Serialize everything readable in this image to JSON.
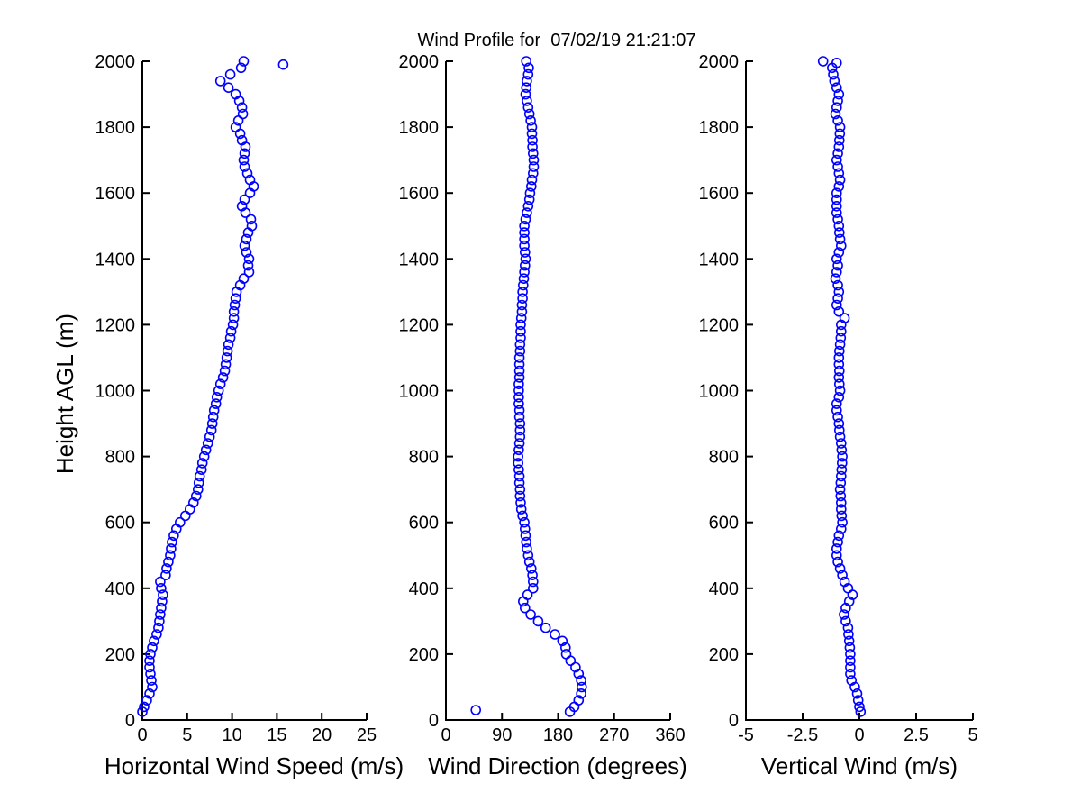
{
  "figure": {
    "title": "Wind Profile for  07/02/19 21:21:07",
    "ylabel": "Height AGL (m)",
    "marker_color": "#0000FF",
    "axis_color": "#000000",
    "background": "#FFFFFF"
  },
  "profile_heights_m": [
    25,
    40,
    60,
    80,
    100,
    120,
    140,
    160,
    180,
    200,
    220,
    240,
    260,
    280,
    300,
    320,
    340,
    360,
    380,
    400,
    420,
    440,
    460,
    480,
    500,
    520,
    540,
    560,
    580,
    600,
    620,
    640,
    660,
    680,
    700,
    720,
    740,
    760,
    780,
    800,
    820,
    840,
    860,
    880,
    900,
    920,
    940,
    960,
    980,
    1000,
    1020,
    1040,
    1060,
    1080,
    1100,
    1120,
    1140,
    1160,
    1180,
    1200,
    1220,
    1240,
    1260,
    1280,
    1300,
    1320,
    1340,
    1360,
    1380,
    1400,
    1420,
    1440,
    1460,
    1480,
    1500,
    1520,
    1540,
    1560,
    1580,
    1600,
    1620,
    1640,
    1660,
    1680,
    1700,
    1720,
    1740,
    1760,
    1780,
    1800,
    1820,
    1840,
    1860,
    1880,
    1900,
    1920,
    1940,
    1960,
    1980,
    2000
  ],
  "chart_data": [
    {
      "type": "scatter",
      "xlabel": "Horizontal Wind Speed (m/s)",
      "ylabel": "Height AGL (m)",
      "marker": "open-circle",
      "xlim": [
        0,
        25
      ],
      "ylim": [
        0,
        2000
      ],
      "xticks": [
        0,
        5,
        10,
        15,
        20,
        25
      ],
      "xtick_labels": [
        "0",
        "5",
        "10",
        "15",
        "20",
        "25"
      ],
      "yticks": [
        0,
        200,
        400,
        600,
        800,
        1000,
        1200,
        1400,
        1600,
        1800,
        2000
      ],
      "grid": false,
      "legend": false,
      "values": [
        0.0,
        0.2,
        0.5,
        0.8,
        1.1,
        1.0,
        0.9,
        0.8,
        0.8,
        0.9,
        1.1,
        1.3,
        1.6,
        1.8,
        1.9,
        2.0,
        2.1,
        2.2,
        2.3,
        2.1,
        2.0,
        2.6,
        2.7,
        2.9,
        3.1,
        3.2,
        3.3,
        3.5,
        3.8,
        4.2,
        4.8,
        5.3,
        5.7,
        6.0,
        6.2,
        6.3,
        6.4,
        6.6,
        6.7,
        6.9,
        7.1,
        7.3,
        7.5,
        7.7,
        7.8,
        7.9,
        8.0,
        8.2,
        8.3,
        8.5,
        8.7,
        9.0,
        9.2,
        9.3,
        9.4,
        9.5,
        9.6,
        9.8,
        9.9,
        10.1,
        10.2,
        10.2,
        10.3,
        10.4,
        10.5,
        10.9,
        11.3,
        11.9,
        11.8,
        11.9,
        11.6,
        11.4,
        11.6,
        11.8,
        12.2,
        12.1,
        11.5,
        11.1,
        11.4,
        12.0,
        12.4,
        12.0,
        11.7,
        11.4,
        11.3,
        11.4,
        11.5,
        11.1,
        10.9,
        10.4,
        10.7,
        11.2,
        11.1,
        10.8,
        10.4,
        9.6,
        8.7,
        9.8,
        11.0,
        11.3
      ],
      "outliers": [
        [
          15.7,
          1990
        ]
      ]
    },
    {
      "type": "scatter",
      "xlabel": "Wind Direction (degrees)",
      "ylabel": "Height AGL (m)",
      "marker": "open-circle",
      "xlim": [
        0,
        360
      ],
      "ylim": [
        0,
        2000
      ],
      "xticks": [
        0,
        90,
        180,
        270,
        360
      ],
      "xtick_labels": [
        "0",
        "90",
        "180",
        "270",
        "360"
      ],
      "yticks": [
        0,
        200,
        400,
        600,
        800,
        1000,
        1200,
        1400,
        1600,
        1800,
        2000
      ],
      "grid": false,
      "legend": false,
      "values": [
        199,
        206,
        213,
        217,
        218,
        217,
        213,
        208,
        200,
        193,
        192,
        187,
        175,
        160,
        148,
        136,
        127,
        124,
        131,
        140,
        140,
        139,
        137,
        134,
        132,
        130,
        129,
        128,
        127,
        126,
        123,
        121,
        120,
        119,
        119,
        118,
        118,
        117,
        116,
        116,
        117,
        118,
        119,
        119,
        119,
        118,
        118,
        117,
        117,
        117,
        117,
        118,
        118,
        118,
        118,
        119,
        119,
        120,
        120,
        120,
        121,
        122,
        122,
        123,
        123,
        124,
        125,
        126,
        127,
        128,
        127,
        126,
        126,
        126,
        126,
        128,
        130,
        132,
        134,
        135,
        137,
        138,
        140,
        141,
        141,
        140,
        139,
        139,
        138,
        138,
        136,
        134,
        132,
        130,
        128,
        129,
        130,
        132,
        133,
        129
      ],
      "outliers": [
        [
          48,
          30
        ]
      ]
    },
    {
      "type": "scatter",
      "xlabel": "Vertical Wind (m/s)",
      "ylabel": "Height AGL (m)",
      "marker": "open-circle",
      "xlim": [
        -5,
        5
      ],
      "ylim": [
        0,
        2000
      ],
      "xticks": [
        -5,
        -2.5,
        0,
        2.5,
        5
      ],
      "xtick_labels": [
        "-5",
        "-2.5",
        "0",
        "2.5",
        "5"
      ],
      "yticks": [
        0,
        200,
        400,
        600,
        800,
        1000,
        1200,
        1400,
        1600,
        1800,
        2000
      ],
      "grid": false,
      "legend": false,
      "values": [
        0.05,
        0.0,
        -0.05,
        -0.1,
        -0.2,
        -0.35,
        -0.4,
        -0.4,
        -0.4,
        -0.4,
        -0.42,
        -0.45,
        -0.48,
        -0.5,
        -0.6,
        -0.68,
        -0.6,
        -0.45,
        -0.3,
        -0.5,
        -0.65,
        -0.75,
        -0.85,
        -0.95,
        -1.0,
        -1.0,
        -0.95,
        -0.9,
        -0.8,
        -0.75,
        -0.78,
        -0.8,
        -0.8,
        -0.82,
        -0.85,
        -0.82,
        -0.8,
        -0.78,
        -0.76,
        -0.75,
        -0.78,
        -0.8,
        -0.85,
        -0.88,
        -0.9,
        -0.95,
        -1.0,
        -1.0,
        -0.9,
        -0.85,
        -0.88,
        -0.9,
        -0.88,
        -0.9,
        -0.9,
        -0.88,
        -0.85,
        -0.82,
        -0.8,
        -0.8,
        -0.65,
        -0.9,
        -1.0,
        -0.95,
        -0.9,
        -0.95,
        -1.05,
        -1.0,
        -0.95,
        -1.0,
        -0.9,
        -0.8,
        -0.85,
        -0.88,
        -0.9,
        -0.95,
        -1.0,
        -1.0,
        -1.0,
        -1.0,
        -0.9,
        -0.85,
        -0.9,
        -0.95,
        -1.0,
        -0.95,
        -0.9,
        -0.88,
        -0.86,
        -0.85,
        -0.95,
        -1.05,
        -1.0,
        -0.95,
        -0.9,
        -1.0,
        -1.1,
        -1.15,
        -1.2,
        -1.6
      ],
      "outliers": [
        [
          -1.0,
          1995
        ]
      ]
    }
  ]
}
